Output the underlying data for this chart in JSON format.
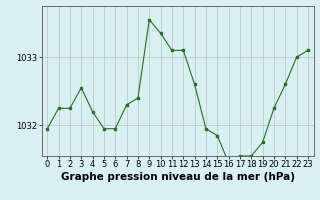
{
  "x": [
    0,
    1,
    2,
    3,
    4,
    5,
    6,
    7,
    8,
    9,
    10,
    11,
    12,
    13,
    14,
    15,
    16,
    17,
    18,
    19,
    20,
    21,
    22,
    23
  ],
  "y": [
    1031.95,
    1032.25,
    1032.25,
    1032.55,
    1032.2,
    1031.95,
    1031.95,
    1032.3,
    1032.4,
    1033.55,
    1033.35,
    1033.1,
    1033.1,
    1032.6,
    1031.95,
    1031.85,
    1031.45,
    1031.55,
    1031.55,
    1031.75,
    1032.25,
    1032.6,
    1033.0,
    1033.1
  ],
  "ylim": [
    1031.55,
    1033.75
  ],
  "yticks": [
    1032,
    1033
  ],
  "xlim": [
    -0.5,
    23.5
  ],
  "xticks": [
    0,
    1,
    2,
    3,
    4,
    5,
    6,
    7,
    8,
    9,
    10,
    11,
    12,
    13,
    14,
    15,
    16,
    17,
    18,
    19,
    20,
    21,
    22,
    23
  ],
  "line_color": "#2d6a2d",
  "marker": "s",
  "marker_size": 2,
  "bg_color": "#d8f0f0",
  "grid_color": "#aaaaaa",
  "xlabel": "Graphe pression niveau de la mer (hPa)",
  "xlabel_fontsize": 7.5,
  "tick_fontsize": 6,
  "title": ""
}
